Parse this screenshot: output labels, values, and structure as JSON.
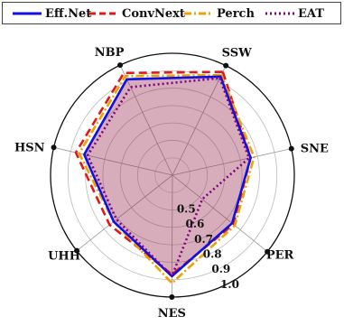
{
  "chart_data": {
    "type": "radar",
    "axes": [
      "SSW",
      "SNE",
      "PER",
      "NES",
      "UHH",
      "HSN",
      "NBP"
    ],
    "rlim": [
      0.3,
      1.0
    ],
    "rticks": [
      "0.5",
      "0.6",
      "0.7",
      "0.8",
      "0.9",
      "1.0"
    ],
    "rtick_values": [
      0.5,
      0.6,
      0.7,
      0.8,
      0.9,
      1.0
    ],
    "grid": true,
    "legend_position": "top",
    "series": [
      {
        "name": "Eff.Net",
        "color": "#1010e0",
        "dash": "solid",
        "fill": true,
        "values": [
          0.93,
          0.76,
          0.74,
          0.88,
          0.73,
          0.82,
          0.91
        ]
      },
      {
        "name": "ConvNext",
        "color": "#e01818",
        "dash": "dashed",
        "values": [
          0.96,
          0.76,
          0.75,
          0.87,
          0.76,
          0.87,
          0.95
        ]
      },
      {
        "name": "Perch",
        "color": "#f0a000",
        "dash": "dashdot",
        "values": [
          0.94,
          0.78,
          0.76,
          0.92,
          0.73,
          0.85,
          0.93
        ]
      },
      {
        "name": "EAT",
        "color": "#800080",
        "dash": "dotted",
        "values": [
          0.92,
          0.75,
          0.52,
          0.88,
          0.71,
          0.8,
          0.86
        ]
      }
    ]
  }
}
